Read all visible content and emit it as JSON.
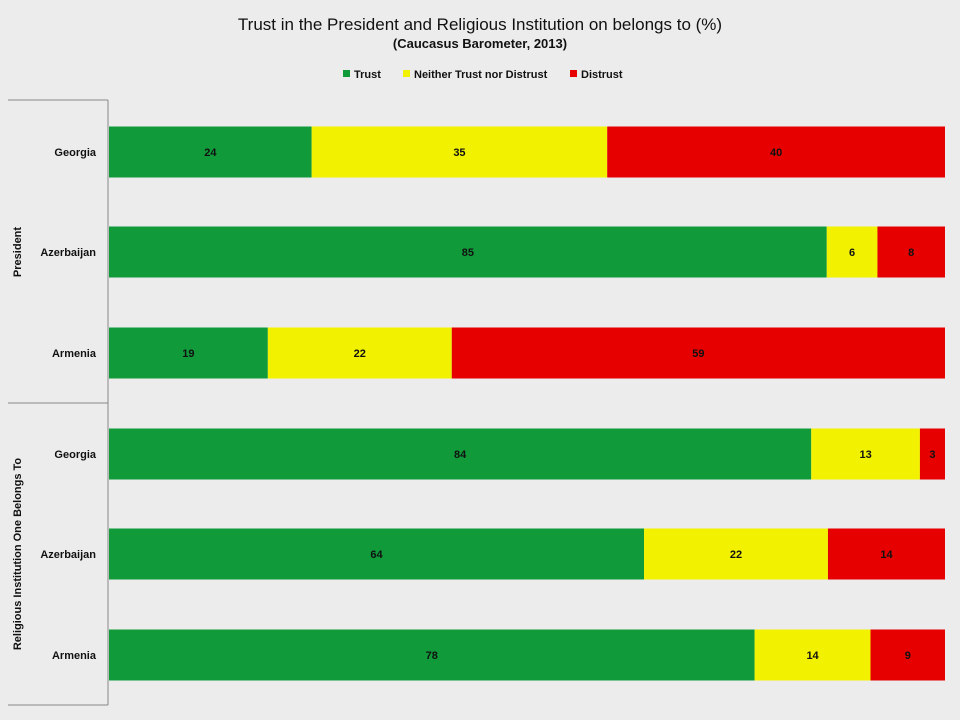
{
  "chart_data": {
    "type": "bar",
    "orientation": "horizontal",
    "stacked": true,
    "title": "Trust in the President and Religious Institution on belongs to (%)",
    "subtitle": "(Caucasus Barometer, 2013)",
    "legend_position": "top-center",
    "xlim": [
      0,
      100
    ],
    "grid": false,
    "groups": [
      {
        "name": "President",
        "categories": [
          "Georgia",
          "Azerbaijan",
          "Armenia"
        ]
      },
      {
        "name": "Religious Institution One Belongs To",
        "categories": [
          "Georgia",
          "Azerbaijan",
          "Armenia"
        ]
      }
    ],
    "series": [
      {
        "name": "Trust",
        "color": "#119a3a",
        "values": [
          24,
          85,
          19,
          84,
          64,
          78
        ]
      },
      {
        "name": "Neither Trust nor Distrust",
        "color": "#f2f200",
        "values": [
          35,
          6,
          22,
          13,
          22,
          14
        ]
      },
      {
        "name": "Distrust",
        "color": "#e60000",
        "values": [
          40,
          8,
          59,
          3,
          14,
          9
        ]
      }
    ]
  }
}
